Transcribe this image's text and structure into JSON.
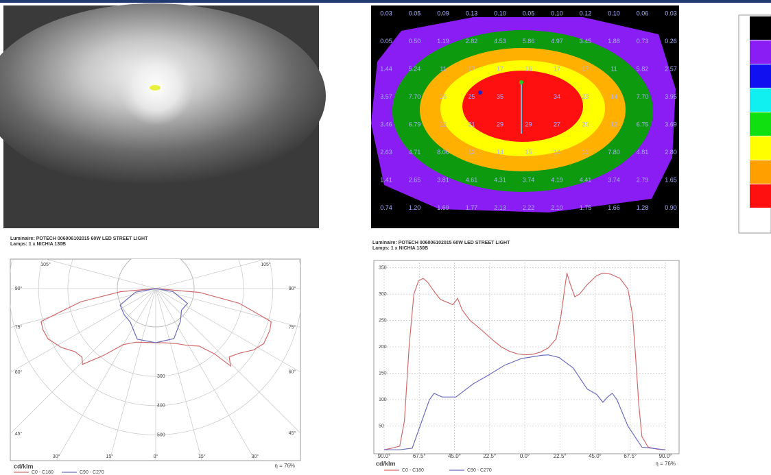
{
  "isolux": {
    "rows": [
      [
        "0.03",
        "0.05",
        "0.09",
        "0.13",
        "0.10",
        "0.05",
        "0.10",
        "0.12",
        "0.10",
        "0.06",
        "0.03"
      ],
      [
        "0.05",
        "0.50",
        "1.19",
        "2.82",
        "4.53",
        "5.86",
        "4.97",
        "3.45",
        "1.88",
        "0.73",
        "0.26"
      ],
      [
        "1.44",
        "5.24",
        "11",
        "17",
        "17",
        "16",
        "17",
        "17",
        "11",
        "5.82",
        "2.57"
      ],
      [
        "3.57",
        "7.70",
        "16",
        "25",
        "35",
        null,
        "34",
        "23",
        "14",
        "7.70",
        "3.95"
      ],
      [
        "3.46",
        "6.79",
        "12",
        "21",
        "29",
        "29",
        "27",
        "20",
        "12",
        "6.75",
        "3.69"
      ],
      [
        "2.63",
        "4.71",
        "8.06",
        "12",
        "14",
        "15",
        "14",
        "11",
        "7.80",
        "4.81",
        "2.80"
      ],
      [
        "1.41",
        "2.65",
        "3.81",
        "4.61",
        "4.31",
        "3.74",
        "4.19",
        "4.41",
        "3.74",
        "2.79",
        "1.65"
      ],
      [
        "0.74",
        "1.20",
        "1.69",
        "1.77",
        "2.13",
        "2.22",
        "2.10",
        "1.75",
        "1.66",
        "1.28",
        "0.90"
      ]
    ]
  },
  "chart_data": [
    {
      "type": "polar",
      "title": "Luminaire: POTECH 006006102015 60W LED STREET LIGHT",
      "subtitle": "Lamps: 1 x NICHIA 130B",
      "unit_label": "cd/klm",
      "efficiency_label": "η = 76%",
      "angle_ticks": [
        {
          "value": -105,
          "label": "105°"
        },
        {
          "value": -90,
          "label": "90°"
        },
        {
          "value": -75,
          "label": "75°"
        },
        {
          "value": -60,
          "label": "60°"
        },
        {
          "value": -45,
          "label": "45°"
        },
        {
          "value": -30,
          "label": "30°"
        },
        {
          "value": -15,
          "label": "15°"
        },
        {
          "value": 0,
          "label": "0°"
        },
        {
          "value": 15,
          "label": "15°"
        },
        {
          "value": 30,
          "label": "30°"
        },
        {
          "value": 45,
          "label": "45°"
        },
        {
          "value": 60,
          "label": "60°"
        },
        {
          "value": 75,
          "label": "75°"
        },
        {
          "value": 90,
          "label": "90°"
        },
        {
          "value": 105,
          "label": "105°"
        }
      ],
      "rticks": [
        300,
        400,
        500
      ],
      "series": [
        {
          "name": "C0 - C180",
          "color": "#d06a6a",
          "theta": [
            -90,
            -85,
            -80,
            -74,
            -70,
            -65,
            -58,
            -52,
            -47,
            -44,
            -38,
            -30,
            -20,
            -10,
            0,
            10,
            20,
            30,
            37,
            42,
            44,
            47,
            52,
            58,
            63,
            70,
            74,
            80,
            85,
            90
          ],
          "values": [
            0,
            120,
            260,
            407,
            410,
            406,
            380,
            350,
            344,
            360,
            290,
            221,
            195,
            187,
            185,
            188,
            200,
            225,
            246,
            300,
            368,
            343,
            360,
            395,
            414,
            415,
            410,
            290,
            150,
            0
          ]
        },
        {
          "name": "C90 - C270",
          "color": "#6b6bbd",
          "theta": [
            -90,
            -80,
            -65,
            -50,
            -37,
            -20,
            0,
            20,
            37,
            50,
            65,
            80,
            90
          ],
          "values": [
            0,
            70,
            134,
            140,
            144,
            184,
            185,
            182,
            140,
            115,
            120,
            60,
            0
          ]
        }
      ]
    },
    {
      "type": "line",
      "title": "Luminaire: POTECH 006006102015 60W LED STREET LIGHT",
      "subtitle": "Lamps: 1 x NICHIA 130B",
      "unit_label": "cd/klm",
      "efficiency_label": "η = 76%",
      "xlim": [
        -90,
        90
      ],
      "ylim": [
        0,
        360
      ],
      "grid": true,
      "xticks": [
        {
          "value": -90,
          "label": "90.0°"
        },
        {
          "value": -67.5,
          "label": "67.5°"
        },
        {
          "value": -45,
          "label": "45.0°"
        },
        {
          "value": -22.5,
          "label": "22.5°"
        },
        {
          "value": 0,
          "label": "0.0°"
        },
        {
          "value": 22.5,
          "label": "22.5°"
        },
        {
          "value": 45,
          "label": "45.0°"
        },
        {
          "value": 67.5,
          "label": "67.5°"
        },
        {
          "value": 90,
          "label": "90.0°"
        }
      ],
      "yticks": [
        50,
        100,
        150,
        200,
        250,
        300,
        350
      ],
      "series": [
        {
          "name": "C0 - C180",
          "color": "#d06a6a",
          "x": [
            -90,
            -85,
            -80,
            -77,
            -74,
            -71,
            -68,
            -65,
            -62,
            -58,
            -54,
            -50,
            -46,
            -43,
            -40,
            -35,
            -30,
            -25,
            -20,
            -15,
            -10,
            -5,
            0,
            5,
            10,
            15,
            20,
            23,
            26,
            27,
            29,
            32,
            35,
            40,
            46,
            50,
            55,
            61,
            66,
            69,
            71,
            73,
            75,
            79,
            85,
            90
          ],
          "values": [
            5,
            8,
            12,
            60,
            200,
            300,
            325,
            330,
            322,
            305,
            290,
            285,
            280,
            292,
            270,
            250,
            238,
            225,
            212,
            200,
            192,
            187,
            185,
            186,
            190,
            198,
            215,
            255,
            320,
            340,
            320,
            295,
            300,
            318,
            335,
            340,
            338,
            330,
            310,
            260,
            180,
            90,
            30,
            10,
            6,
            5
          ]
        },
        {
          "name": "C90 - C270",
          "color": "#6b6bbd",
          "x": [
            -90,
            -80,
            -72,
            -67,
            -61,
            -58,
            -53,
            -44,
            -33,
            -24,
            -13,
            -2,
            11,
            15,
            22,
            31,
            40,
            46,
            50,
            53,
            56,
            59,
            66,
            75,
            90
          ],
          "values": [
            5,
            5,
            8,
            50,
            100,
            112,
            105,
            105,
            130,
            145,
            165,
            178,
            184,
            185,
            180,
            160,
            120,
            110,
            95,
            105,
            112,
            100,
            50,
            10,
            5
          ]
        }
      ]
    }
  ]
}
